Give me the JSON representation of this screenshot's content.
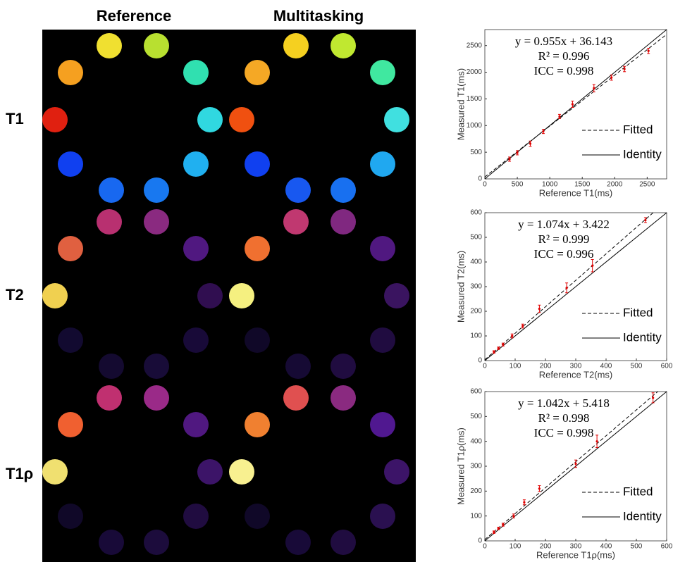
{
  "images": {
    "column_labels": [
      "Reference",
      "Multitasking"
    ],
    "row_labels": [
      "T1",
      "T2",
      "T1ρ"
    ]
  },
  "chart_data": [
    {
      "type": "scatter",
      "x_label": "Reference T1(ms)",
      "y_label": "Measured T1(ms)",
      "annotations": [
        "y = 0.955x + 36.143",
        "R² = 0.996",
        "ICC = 0.998"
      ],
      "fit": {
        "slope": 0.955,
        "intercept": 36.143
      },
      "x": [
        380,
        500,
        700,
        900,
        1150,
        1350,
        1680,
        1950,
        2150,
        2520
      ],
      "values": [
        370,
        490,
        660,
        890,
        1170,
        1400,
        1700,
        1900,
        2060,
        2400
      ],
      "errors": [
        40,
        40,
        50,
        40,
        40,
        60,
        70,
        50,
        50,
        50
      ],
      "color": "#e00000",
      "lines": [
        {
          "name": "Fitted",
          "style": "dashed"
        },
        {
          "name": "Identity",
          "style": "solid"
        }
      ],
      "xlim": [
        0,
        2800
      ],
      "ylim": [
        0,
        2800
      ],
      "xticks": [
        0,
        500,
        1000,
        1500,
        2000,
        2500
      ],
      "yticks": [
        0,
        500,
        1000,
        1500,
        2000,
        2500
      ]
    },
    {
      "type": "scatter",
      "x_label": "Reference T2(ms)",
      "y_label": "Measured T2(ms)",
      "annotations": [
        "y = 1.074x + 3.422",
        "R² = 0.999",
        "ICC = 0.996"
      ],
      "fit": {
        "slope": 1.074,
        "intercept": 3.422
      },
      "x": [
        30,
        45,
        60,
        90,
        125,
        180,
        270,
        355,
        530
      ],
      "values": [
        35,
        50,
        65,
        100,
        140,
        210,
        295,
        385,
        570
      ],
      "errors": [
        5,
        5,
        6,
        8,
        8,
        15,
        20,
        25,
        10
      ],
      "color": "#e00000",
      "lines": [
        {
          "name": "Fitted",
          "style": "dashed"
        },
        {
          "name": "Identity",
          "style": "solid"
        }
      ],
      "xlim": [
        0,
        600
      ],
      "ylim": [
        0,
        600
      ],
      "xticks": [
        0,
        100,
        200,
        300,
        400,
        500,
        600
      ],
      "yticks": [
        0,
        100,
        200,
        300,
        400,
        500,
        600
      ]
    },
    {
      "type": "scatter",
      "x_label": "Reference T1ρ(ms)",
      "y_label": "Measured T1ρ(ms)",
      "annotations": [
        "y = 1.042x + 5.418",
        "R² = 0.998",
        "ICC = 0.998"
      ],
      "fit": {
        "slope": 1.042,
        "intercept": 5.418
      },
      "x": [
        30,
        45,
        60,
        95,
        130,
        180,
        300,
        370,
        555
      ],
      "values": [
        35,
        50,
        65,
        100,
        155,
        210,
        310,
        400,
        575
      ],
      "errors": [
        5,
        5,
        6,
        8,
        10,
        12,
        15,
        25,
        20
      ],
      "color": "#e00000",
      "lines": [
        {
          "name": "Fitted",
          "style": "dashed"
        },
        {
          "name": "Identity",
          "style": "solid"
        }
      ],
      "xlim": [
        0,
        600
      ],
      "ylim": [
        0,
        600
      ],
      "xticks": [
        0,
        100,
        200,
        300,
        400,
        500,
        600
      ],
      "yticks": [
        0,
        100,
        200,
        300,
        400,
        500,
        600
      ]
    }
  ]
}
